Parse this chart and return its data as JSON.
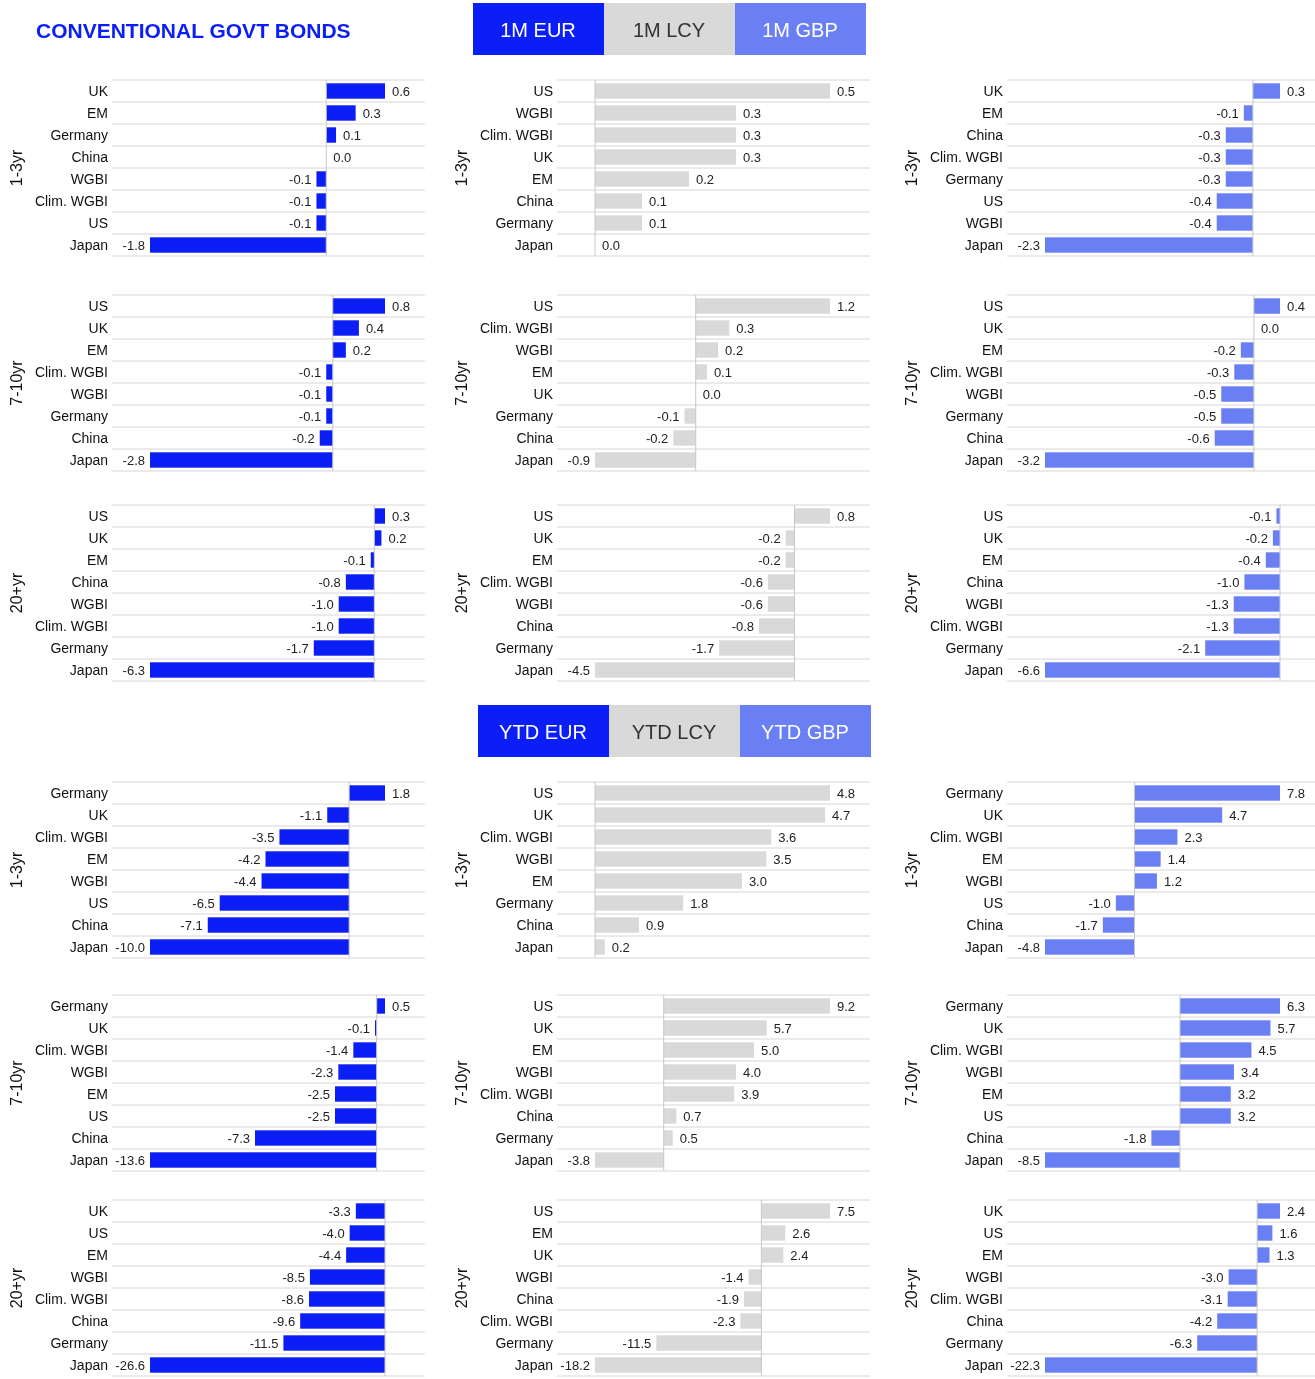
{
  "chart_data": [
    {
      "type": "bar",
      "orientation": "horizontal",
      "title": "CONVENTIONAL GOVT BONDS",
      "annotations": [
        "1M EUR"
      ],
      "ylabel": "1-3yr",
      "categories": [
        "UK",
        "EM",
        "Germany",
        "China",
        "WGBI",
        "Clim. WGBI",
        "US",
        "Japan"
      ],
      "series": [
        {
          "color": "#0a1ef5",
          "values": [
            0.6,
            0.3,
            0.1,
            0.0,
            -0.1,
            -0.1,
            -0.1,
            -1.8
          ],
          "value_labels": [
            "0.6",
            "0.3",
            "0.1",
            "0.0",
            "-0.1",
            "-0.1",
            "-0.1",
            "-1.8"
          ]
        }
      ],
      "grid": true
    },
    {
      "type": "bar",
      "orientation": "horizontal",
      "annotations": [
        "1M LCY"
      ],
      "ylabel": "1-3yr",
      "categories": [
        "US",
        "WGBI",
        "Clim. WGBI",
        "UK",
        "EM",
        "China",
        "Germany",
        "Japan"
      ],
      "series": [
        {
          "color": "#d9d9d9",
          "values": [
            0.5,
            0.3,
            0.3,
            0.3,
            0.2,
            0.1,
            0.1,
            0.0
          ],
          "value_labels": [
            "0.5",
            "0.3",
            "0.3",
            "0.3",
            "0.2",
            "0.1",
            "0.1",
            "0.0"
          ]
        }
      ],
      "grid": true
    },
    {
      "type": "bar",
      "orientation": "horizontal",
      "annotations": [
        "1M GBP"
      ],
      "ylabel": "1-3yr",
      "categories": [
        "UK",
        "EM",
        "China",
        "Clim. WGBI",
        "Germany",
        "US",
        "WGBI",
        "Japan"
      ],
      "series": [
        {
          "color": "#6b7ff5",
          "values": [
            0.3,
            -0.1,
            -0.3,
            -0.3,
            -0.3,
            -0.4,
            -0.4,
            -2.3
          ],
          "value_labels": [
            "0.3",
            "-0.1",
            "-0.3",
            "-0.3",
            "-0.3",
            "-0.4",
            "-0.4",
            "-2.3"
          ]
        }
      ],
      "grid": true
    },
    {
      "type": "bar",
      "orientation": "horizontal",
      "ylabel": "7-10yr",
      "categories": [
        "US",
        "UK",
        "EM",
        "Clim. WGBI",
        "WGBI",
        "Germany",
        "China",
        "Japan"
      ],
      "series": [
        {
          "color": "#0a1ef5",
          "values": [
            0.8,
            0.4,
            0.2,
            -0.1,
            -0.1,
            -0.1,
            -0.2,
            -2.8
          ],
          "value_labels": [
            "0.8",
            "0.4",
            "0.2",
            "-0.1",
            "-0.1",
            "-0.1",
            "-0.2",
            "-2.8"
          ]
        }
      ],
      "grid": true
    },
    {
      "type": "bar",
      "orientation": "horizontal",
      "ylabel": "7-10yr",
      "categories": [
        "US",
        "Clim. WGBI",
        "WGBI",
        "EM",
        "UK",
        "Germany",
        "China",
        "Japan"
      ],
      "series": [
        {
          "color": "#d9d9d9",
          "values": [
            1.2,
            0.3,
            0.2,
            0.1,
            0.0,
            -0.1,
            -0.2,
            -0.9
          ],
          "value_labels": [
            "1.2",
            "0.3",
            "0.2",
            "0.1",
            "0.0",
            "-0.1",
            "-0.2",
            "-0.9"
          ]
        }
      ],
      "grid": true
    },
    {
      "type": "bar",
      "orientation": "horizontal",
      "ylabel": "7-10yr",
      "categories": [
        "US",
        "UK",
        "EM",
        "Clim. WGBI",
        "WGBI",
        "Germany",
        "China",
        "Japan"
      ],
      "series": [
        {
          "color": "#6b7ff5",
          "values": [
            0.4,
            0.0,
            -0.2,
            -0.3,
            -0.5,
            -0.5,
            -0.6,
            -3.2
          ],
          "value_labels": [
            "0.4",
            "0.0",
            "-0.2",
            "-0.3",
            "-0.5",
            "-0.5",
            "-0.6",
            "-3.2"
          ]
        }
      ],
      "grid": true
    },
    {
      "type": "bar",
      "orientation": "horizontal",
      "ylabel": "20+yr",
      "categories": [
        "US",
        "UK",
        "EM",
        "China",
        "WGBI",
        "Clim. WGBI",
        "Germany",
        "Japan"
      ],
      "series": [
        {
          "color": "#0a1ef5",
          "values": [
            0.3,
            0.2,
            -0.1,
            -0.8,
            -1.0,
            -1.0,
            -1.7,
            -6.3
          ],
          "value_labels": [
            "0.3",
            "0.2",
            "-0.1",
            "-0.8",
            "-1.0",
            "-1.0",
            "-1.7",
            "-6.3"
          ]
        }
      ],
      "grid": true
    },
    {
      "type": "bar",
      "orientation": "horizontal",
      "ylabel": "20+yr",
      "categories": [
        "US",
        "UK",
        "EM",
        "Clim. WGBI",
        "WGBI",
        "China",
        "Germany",
        "Japan"
      ],
      "series": [
        {
          "color": "#d9d9d9",
          "values": [
            0.8,
            -0.2,
            -0.2,
            -0.6,
            -0.6,
            -0.8,
            -1.7,
            -4.5
          ],
          "value_labels": [
            "0.8",
            "-0.2",
            "-0.2",
            "-0.6",
            "-0.6",
            "-0.8",
            "-1.7",
            "-4.5"
          ]
        }
      ],
      "grid": true
    },
    {
      "type": "bar",
      "orientation": "horizontal",
      "ylabel": "20+yr",
      "categories": [
        "US",
        "UK",
        "EM",
        "China",
        "WGBI",
        "Clim. WGBI",
        "Germany",
        "Japan"
      ],
      "series": [
        {
          "color": "#6b7ff5",
          "values": [
            -0.1,
            -0.2,
            -0.4,
            -1.0,
            -1.3,
            -1.3,
            -2.1,
            -6.6
          ],
          "value_labels": [
            "-0.1",
            "-0.2",
            "-0.4",
            "-1.0",
            "-1.3",
            "-1.3",
            "-2.1",
            "-6.6"
          ]
        }
      ],
      "grid": true
    },
    {
      "type": "bar",
      "orientation": "horizontal",
      "annotations": [
        "YTD EUR"
      ],
      "ylabel": "1-3yr",
      "categories": [
        "Germany",
        "UK",
        "Clim. WGBI",
        "EM",
        "WGBI",
        "US",
        "China",
        "Japan"
      ],
      "series": [
        {
          "color": "#0a1ef5",
          "values": [
            1.8,
            -1.1,
            -3.5,
            -4.2,
            -4.4,
            -6.5,
            -7.1,
            -10.0
          ],
          "value_labels": [
            "1.8",
            "-1.1",
            "-3.5",
            "-4.2",
            "-4.4",
            "-6.5",
            "-7.1",
            "-10.0"
          ]
        }
      ],
      "grid": true
    },
    {
      "type": "bar",
      "orientation": "horizontal",
      "annotations": [
        "YTD LCY"
      ],
      "ylabel": "1-3yr",
      "categories": [
        "US",
        "UK",
        "Clim. WGBI",
        "WGBI",
        "EM",
        "Germany",
        "China",
        "Japan"
      ],
      "series": [
        {
          "color": "#d9d9d9",
          "values": [
            4.8,
            4.7,
            3.6,
            3.5,
            3.0,
            1.8,
            0.9,
            0.2
          ],
          "value_labels": [
            "4.8",
            "4.7",
            "3.6",
            "3.5",
            "3.0",
            "1.8",
            "0.9",
            "0.2"
          ]
        }
      ],
      "grid": true
    },
    {
      "type": "bar",
      "orientation": "horizontal",
      "annotations": [
        "YTD GBP"
      ],
      "ylabel": "1-3yr",
      "categories": [
        "Germany",
        "UK",
        "Clim. WGBI",
        "EM",
        "WGBI",
        "US",
        "China",
        "Japan"
      ],
      "series": [
        {
          "color": "#6b7ff5",
          "values": [
            7.8,
            4.7,
            2.3,
            1.4,
            1.2,
            -1.0,
            -1.7,
            -4.8
          ],
          "value_labels": [
            "7.8",
            "4.7",
            "2.3",
            "1.4",
            "1.2",
            "-1.0",
            "-1.7",
            "-4.8"
          ]
        }
      ],
      "grid": true
    },
    {
      "type": "bar",
      "orientation": "horizontal",
      "ylabel": "7-10yr",
      "categories": [
        "Germany",
        "UK",
        "Clim. WGBI",
        "WGBI",
        "EM",
        "US",
        "China",
        "Japan"
      ],
      "series": [
        {
          "color": "#0a1ef5",
          "values": [
            0.5,
            -0.1,
            -1.4,
            -2.3,
            -2.5,
            -2.5,
            -7.3,
            -13.6
          ],
          "value_labels": [
            "0.5",
            "-0.1",
            "-1.4",
            "-2.3",
            "-2.5",
            "-2.5",
            "-7.3",
            "-13.6"
          ]
        }
      ],
      "grid": true
    },
    {
      "type": "bar",
      "orientation": "horizontal",
      "ylabel": "7-10yr",
      "categories": [
        "US",
        "UK",
        "EM",
        "WGBI",
        "Clim. WGBI",
        "China",
        "Germany",
        "Japan"
      ],
      "series": [
        {
          "color": "#d9d9d9",
          "values": [
            9.2,
            5.7,
            5.0,
            4.0,
            3.9,
            0.7,
            0.5,
            -3.8
          ],
          "value_labels": [
            "9.2",
            "5.7",
            "5.0",
            "4.0",
            "3.9",
            "0.7",
            "0.5",
            "-3.8"
          ]
        }
      ],
      "grid": true
    },
    {
      "type": "bar",
      "orientation": "horizontal",
      "ylabel": "7-10yr",
      "categories": [
        "Germany",
        "UK",
        "Clim. WGBI",
        "WGBI",
        "EM",
        "US",
        "China",
        "Japan"
      ],
      "series": [
        {
          "color": "#6b7ff5",
          "values": [
            6.3,
            5.7,
            4.5,
            3.4,
            3.2,
            3.2,
            -1.8,
            -8.5
          ],
          "value_labels": [
            "6.3",
            "5.7",
            "4.5",
            "3.4",
            "3.2",
            "3.2",
            "-1.8",
            "-8.5"
          ]
        }
      ],
      "grid": true
    },
    {
      "type": "bar",
      "orientation": "horizontal",
      "ylabel": "20+yr",
      "categories": [
        "UK",
        "US",
        "EM",
        "WGBI",
        "Clim. WGBI",
        "China",
        "Germany",
        "Japan"
      ],
      "series": [
        {
          "color": "#0a1ef5",
          "values": [
            -3.3,
            -4.0,
            -4.4,
            -8.5,
            -8.6,
            -9.6,
            -11.5,
            -26.6
          ],
          "value_labels": [
            "-3.3",
            "-4.0",
            "-4.4",
            "-8.5",
            "-8.6",
            "-9.6",
            "-11.5",
            "-26.6"
          ]
        }
      ],
      "grid": true
    },
    {
      "type": "bar",
      "orientation": "horizontal",
      "ylabel": "20+yr",
      "categories": [
        "US",
        "EM",
        "UK",
        "WGBI",
        "China",
        "Clim. WGBI",
        "Germany",
        "Japan"
      ],
      "series": [
        {
          "color": "#d9d9d9",
          "values": [
            7.5,
            2.6,
            2.4,
            -1.4,
            -1.9,
            -2.3,
            -11.5,
            -18.2
          ],
          "value_labels": [
            "7.5",
            "2.6",
            "2.4",
            "-1.4",
            "-1.9",
            "-2.3",
            "-11.5",
            "-18.2"
          ]
        }
      ],
      "grid": true
    },
    {
      "type": "bar",
      "orientation": "horizontal",
      "ylabel": "20+yr",
      "categories": [
        "UK",
        "US",
        "EM",
        "WGBI",
        "Clim. WGBI",
        "China",
        "Germany",
        "Japan"
      ],
      "series": [
        {
          "color": "#6b7ff5",
          "values": [
            2.4,
            1.6,
            1.3,
            -3.0,
            -3.1,
            -4.2,
            -6.3,
            -22.3
          ],
          "value_labels": [
            "2.4",
            "1.6",
            "1.3",
            "-3.0",
            "-3.1",
            "-4.2",
            "-6.3",
            "-22.3"
          ]
        }
      ],
      "grid": true
    }
  ]
}
